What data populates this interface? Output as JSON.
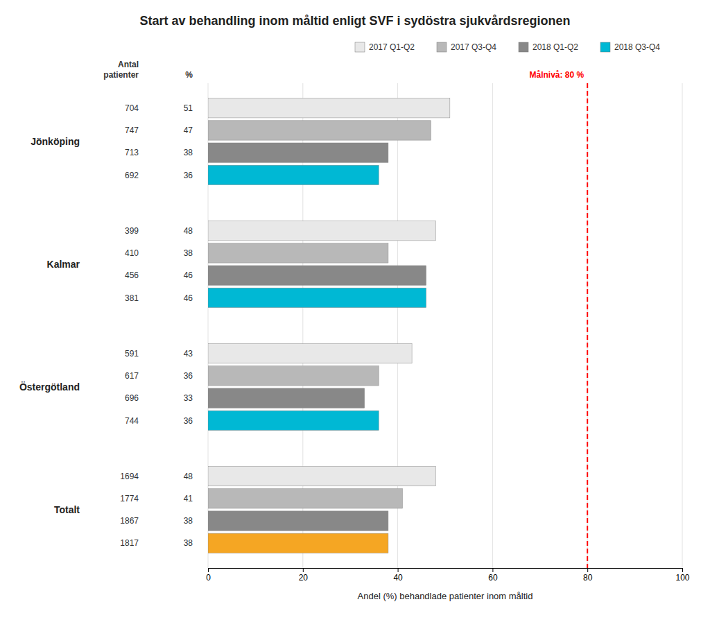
{
  "chart_data": {
    "type": "bar",
    "orientation": "horizontal",
    "title": "Start av behandling inom måltid enligt SVF i sydöstra sjukvårdsregionen",
    "x_label": "Andel (%) behandlade patienter inom måltid",
    "categories": [
      "Jönköping",
      "Kalmar",
      "Östergötland",
      "Totalt"
    ],
    "series": [
      {
        "name": "2017 Q1-Q2",
        "color": "#e8e8e8",
        "values": [
          51,
          48,
          43,
          48
        ],
        "n": [
          704,
          399,
          591,
          1694
        ]
      },
      {
        "name": "2017 Q3-Q4",
        "color": "#b8b8b8",
        "values": [
          47,
          38,
          36,
          41
        ],
        "n": [
          747,
          410,
          617,
          1774
        ]
      },
      {
        "name": "2018 Q1-Q2",
        "color": "#888888",
        "values": [
          38,
          46,
          33,
          38
        ],
        "n": [
          713,
          456,
          696,
          1867
        ]
      },
      {
        "name": "2018 Q3-Q4",
        "color": "#00b8d4",
        "colors": [
          "#00b8d4",
          "#00b8d4",
          "#00b8d4",
          "#f5a623"
        ],
        "values": [
          36,
          46,
          36,
          38
        ],
        "n": [
          692,
          381,
          744,
          1817
        ]
      }
    ],
    "xlim": [
      0,
      100
    ],
    "xticks": [
      0,
      20,
      40,
      60,
      80,
      100
    ],
    "grid": true,
    "legend": "upper right",
    "data_labels": true,
    "annotations": [
      {
        "text": "Antal\npatienter"
      },
      {
        "text": "%"
      },
      {
        "type": "line",
        "x": 80,
        "text": "Målnivå: 80 %",
        "color": "red",
        "line_style": "dashed"
      }
    ]
  }
}
